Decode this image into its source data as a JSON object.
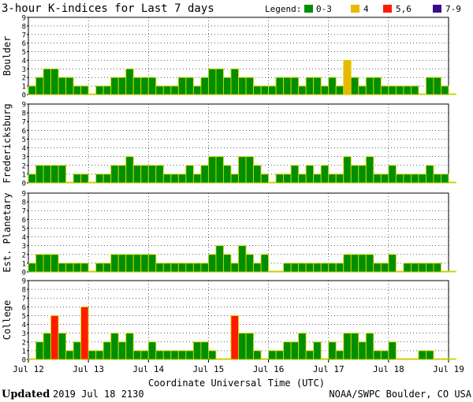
{
  "title": "3-hour K-indices for Last 7 days",
  "legend": {
    "label": "Legend:",
    "items": [
      {
        "label": "0-3",
        "color": "#008f00"
      },
      {
        "label": "4",
        "color": "#e8b800"
      },
      {
        "label": "5,6",
        "color": "#ff1a00"
      },
      {
        "label": "7-9",
        "color": "#3c0a8c"
      }
    ]
  },
  "colors": {
    "bar_outline": "#d8d800",
    "grid": "#000000"
  },
  "chart_data": [
    {
      "type": "bar",
      "title": "Boulder",
      "ylim": [
        0,
        9
      ],
      "yticks": [
        0,
        1,
        2,
        3,
        4,
        5,
        6,
        7,
        8,
        9
      ],
      "values": [
        1,
        2,
        3,
        3,
        2,
        2,
        1,
        1,
        0,
        1,
        1,
        2,
        2,
        3,
        2,
        2,
        2,
        1,
        1,
        1,
        2,
        2,
        1,
        2,
        3,
        3,
        2,
        3,
        2,
        2,
        1,
        1,
        1,
        2,
        2,
        2,
        1,
        2,
        2,
        1,
        2,
        1,
        4,
        2,
        1,
        2,
        2,
        1,
        1,
        1,
        1,
        1,
        0,
        2,
        2,
        1,
        0
      ]
    },
    {
      "type": "bar",
      "title": "Fredericksburg",
      "ylim": [
        0,
        9
      ],
      "yticks": [
        0,
        1,
        2,
        3,
        4,
        5,
        6,
        7,
        8,
        9
      ],
      "values": [
        1,
        2,
        2,
        2,
        2,
        0,
        1,
        1,
        0,
        1,
        1,
        2,
        2,
        3,
        2,
        2,
        2,
        2,
        1,
        1,
        1,
        2,
        1,
        2,
        3,
        3,
        2,
        1,
        3,
        3,
        2,
        1,
        0,
        1,
        1,
        2,
        1,
        2,
        1,
        2,
        1,
        1,
        3,
        2,
        2,
        3,
        1,
        1,
        2,
        1,
        1,
        1,
        1,
        2,
        1,
        1,
        0
      ]
    },
    {
      "type": "bar",
      "title": "Est. Planetary",
      "ylim": [
        0,
        9
      ],
      "yticks": [
        0,
        1,
        2,
        3,
        4,
        5,
        6,
        7,
        8,
        9
      ],
      "values": [
        1,
        2,
        2,
        2,
        1,
        1,
        1,
        1,
        0,
        1,
        1,
        2,
        2,
        2,
        2,
        2,
        2,
        1,
        1,
        1,
        1,
        1,
        1,
        1,
        2,
        3,
        2,
        1,
        3,
        2,
        1,
        2,
        0,
        0,
        1,
        1,
        1,
        1,
        1,
        1,
        1,
        1,
        2,
        2,
        2,
        2,
        1,
        1,
        2,
        0,
        1,
        1,
        1,
        1,
        1,
        0,
        0
      ]
    },
    {
      "type": "bar",
      "title": "College",
      "ylim": [
        0,
        9
      ],
      "yticks": [
        0,
        1,
        2,
        3,
        4,
        5,
        6,
        7,
        8,
        9
      ],
      "values": [
        0,
        2,
        3,
        5,
        3,
        1,
        2,
        6,
        1,
        1,
        2,
        3,
        2,
        3,
        1,
        1,
        2,
        1,
        1,
        1,
        1,
        1,
        2,
        2,
        1,
        0,
        0,
        5,
        3,
        3,
        1,
        0,
        1,
        1,
        2,
        2,
        3,
        1,
        2,
        0,
        2,
        1,
        3,
        3,
        2,
        3,
        1,
        1,
        2,
        0,
        0,
        0,
        1,
        1,
        0,
        0,
        0
      ]
    }
  ],
  "x_axis": {
    "ticks": [
      "Jul 12",
      "Jul 13",
      "Jul 14",
      "Jul 15",
      "Jul 16",
      "Jul 17",
      "Jul 18",
      "Jul 19"
    ],
    "label": "Coordinate Universal Time (UTC)"
  },
  "footer": {
    "updated_label": "Updated",
    "updated_value": "2019 Jul 18 2130",
    "credit": "NOAA/SWPC Boulder, CO USA"
  }
}
